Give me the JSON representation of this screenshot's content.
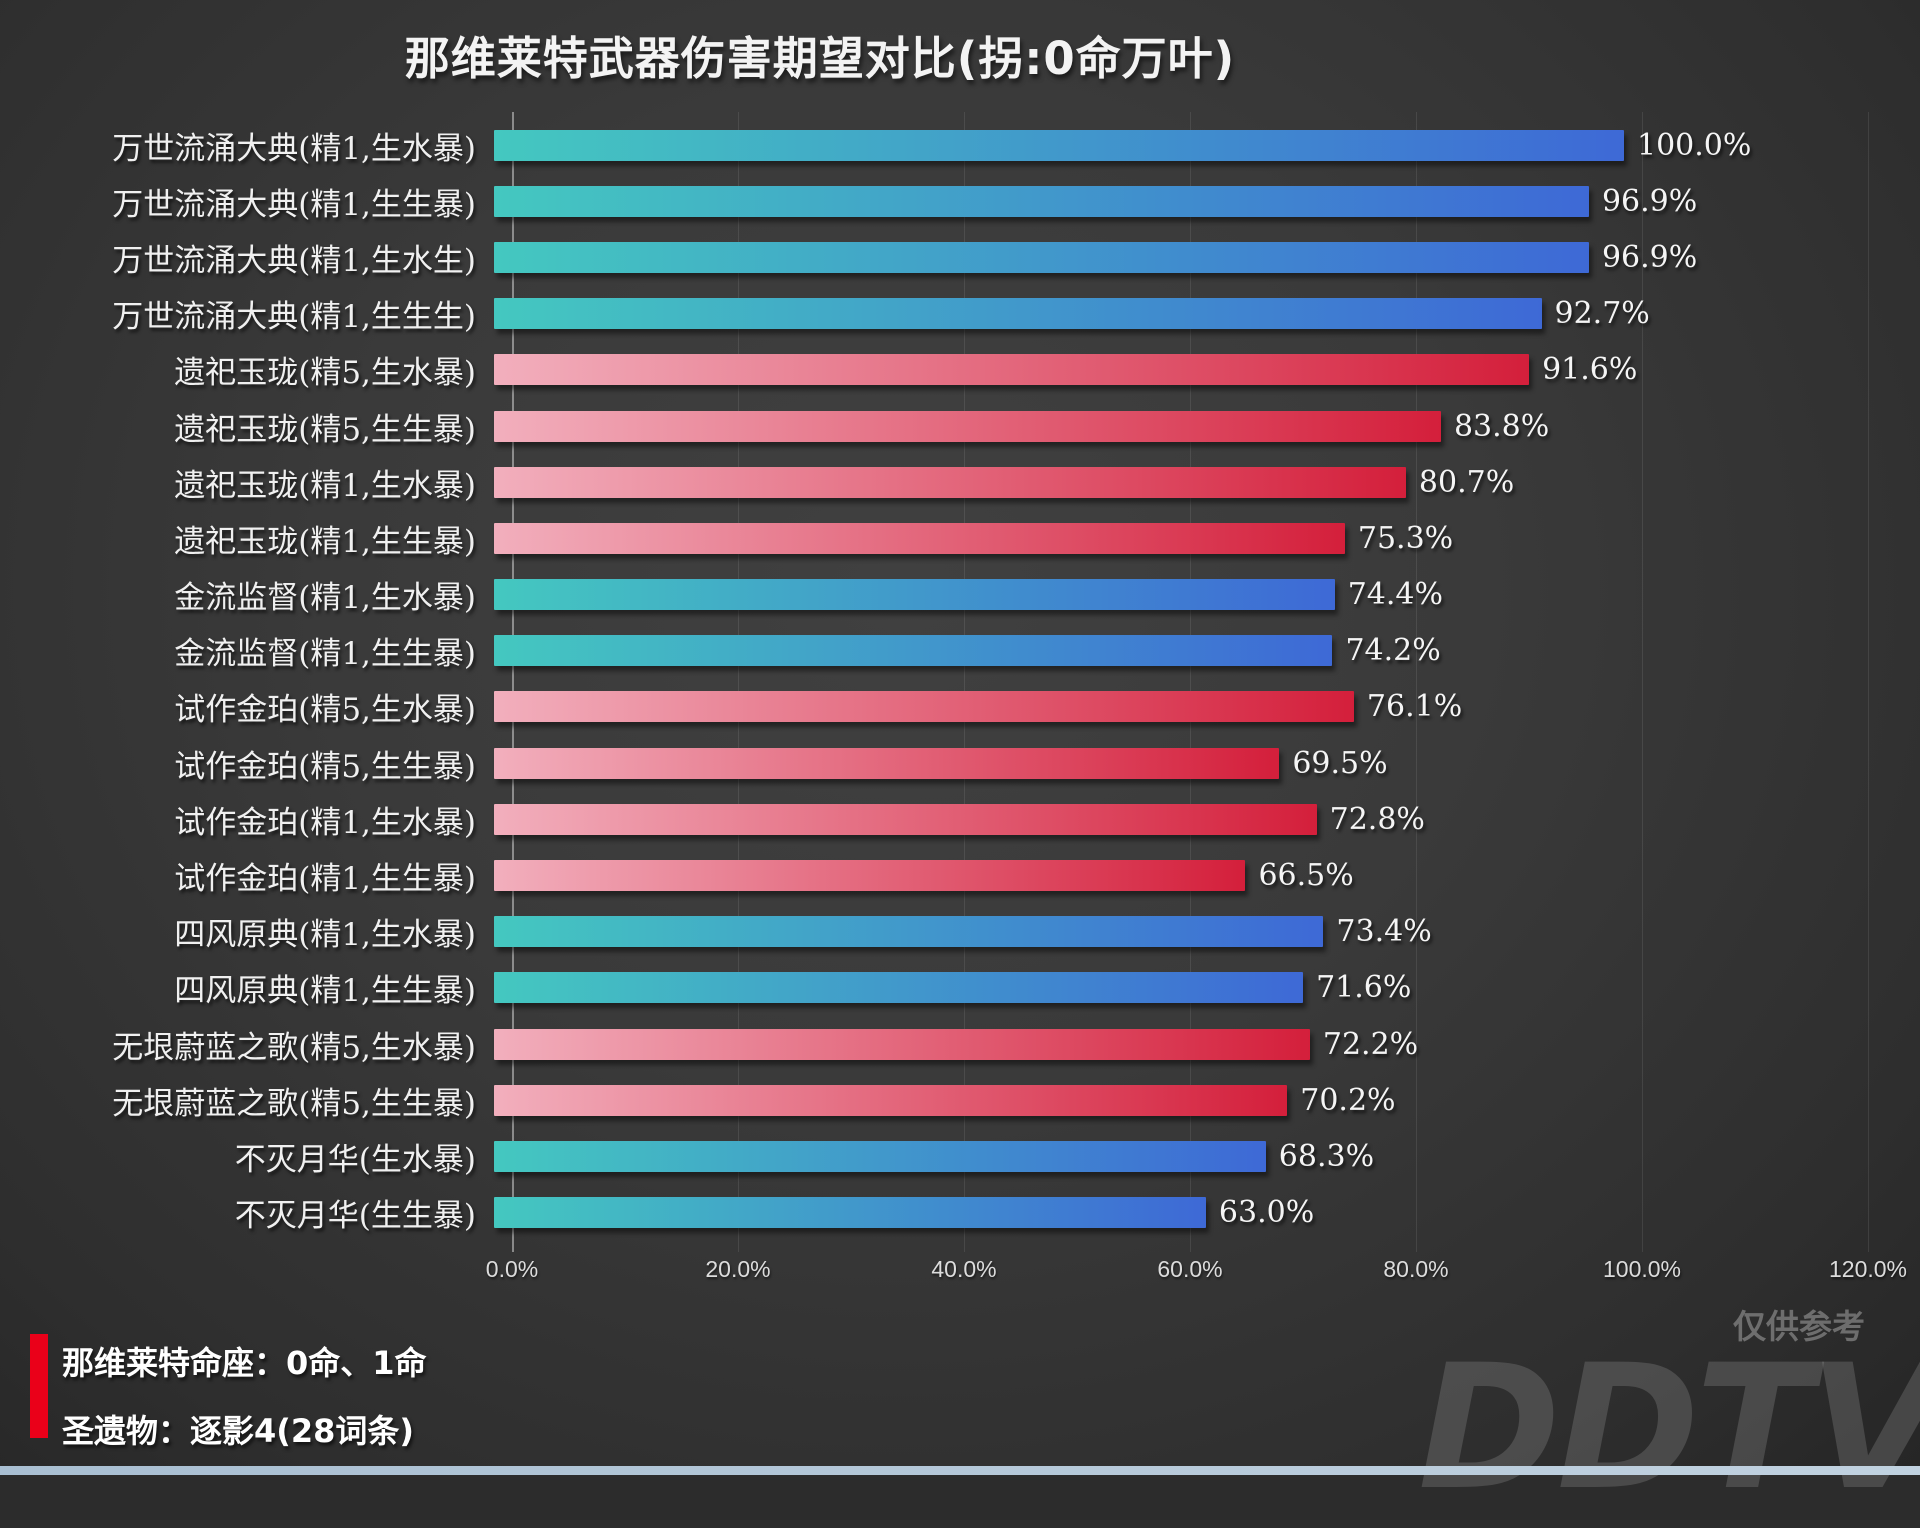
{
  "title": "那维莱特武器伤害期望对比(拐:0命万叶)",
  "chart_data": {
    "type": "bar",
    "orientation": "horizontal",
    "title": "那维莱特武器伤害期望对比(拐:0命万叶)",
    "xlim": [
      0,
      120
    ],
    "x_ticks": [
      "0.0%",
      "20.0%",
      "40.0%",
      "60.0%",
      "80.0%",
      "100.0%",
      "120.0%"
    ],
    "grid": "vertical gridlines every 20%, axis line at 0%",
    "legend_position": "none",
    "categories": [
      "万世流涌大典(精1,生水暴)",
      "万世流涌大典(精1,生生暴)",
      "万世流涌大典(精1,生水生)",
      "万世流涌大典(精1,生生生)",
      "遗祀玉珑(精5,生水暴)",
      "遗祀玉珑(精5,生生暴)",
      "遗祀玉珑(精1,生水暴)",
      "遗祀玉珑(精1,生生暴)",
      "金流监督(精1,生水暴)",
      "金流监督(精1,生生暴)",
      "试作金珀(精5,生水暴)",
      "试作金珀(精5,生生暴)",
      "试作金珀(精1,生水暴)",
      "试作金珀(精1,生生暴)",
      "四风原典(精1,生水暴)",
      "四风原典(精1,生生暴)",
      "无垠蔚蓝之歌(精5,生水暴)",
      "无垠蔚蓝之歌(精5,生生暴)",
      "不灭月华(生水暴)",
      "不灭月华(生生暴)"
    ],
    "values": [
      100.0,
      96.9,
      96.9,
      92.7,
      91.6,
      83.8,
      80.7,
      75.3,
      74.4,
      74.2,
      76.1,
      69.5,
      72.8,
      66.5,
      73.4,
      71.6,
      72.2,
      70.2,
      68.3,
      63.0
    ],
    "value_labels": [
      "100.0%",
      "96.9%",
      "96.9%",
      "92.7%",
      "91.6%",
      "83.8%",
      "80.7%",
      "75.3%",
      "74.4%",
      "74.2%",
      "76.1%",
      "69.5%",
      "72.8%",
      "66.5%",
      "73.4%",
      "71.6%",
      "72.2%",
      "70.2%",
      "68.3%",
      "63.0%"
    ],
    "bar_styles": [
      "blue",
      "blue",
      "blue",
      "blue",
      "red",
      "red",
      "red",
      "red",
      "blue",
      "blue",
      "red",
      "red",
      "red",
      "red",
      "blue",
      "blue",
      "red",
      "red",
      "blue",
      "blue"
    ],
    "colors": {
      "blue_gradient_start": "#44c8c0",
      "blue_gradient_end": "#3e69d6",
      "red_gradient_start": "#f2afbd",
      "red_gradient_end": "#d41f3b"
    }
  },
  "footer": {
    "marker_color": "#ea0019",
    "line1": "那维莱特命座：0命、1命",
    "line2": "圣遗物：逐影4(28词条)"
  },
  "watermark": {
    "small": "仅供参考",
    "large": "DDTV"
  }
}
